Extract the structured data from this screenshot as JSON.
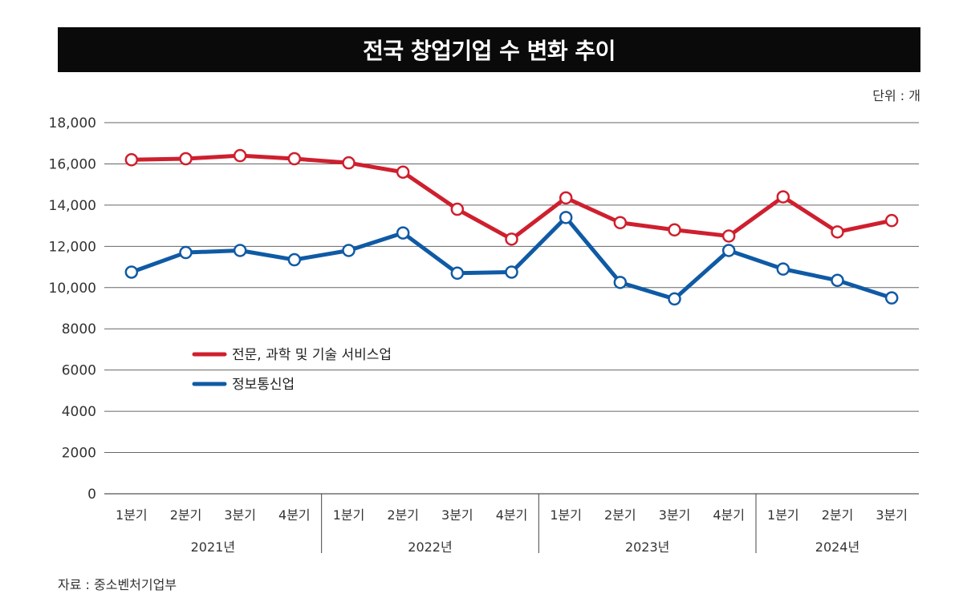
{
  "title": "전국 창업기업 수 변화 추이",
  "unit": "단위 : 개",
  "source": "자료 : 중소벤처기업부",
  "colors": {
    "red": "#cf1f2e",
    "blue": "#0f5aa5"
  },
  "chart_data": {
    "type": "line",
    "title": "전국 창업기업 수 변화 추이",
    "xlabel": "",
    "ylabel": "",
    "ylim": [
      0,
      18000
    ],
    "yticks": [
      0,
      2000,
      4000,
      6000,
      8000,
      10000,
      12000,
      14000,
      16000,
      18000
    ],
    "ytick_labels": [
      "0",
      "2000",
      "4000",
      "6000",
      "8000",
      "10,000",
      "12,000",
      "14,000",
      "16,000",
      "18,000"
    ],
    "grid": true,
    "legend_position": "center-left",
    "categories": [
      "1분기",
      "2분기",
      "3분기",
      "4분기",
      "1분기",
      "2분기",
      "3분기",
      "4분기",
      "1분기",
      "2분기",
      "3분기",
      "4분기",
      "1분기",
      "2분기",
      "3분기"
    ],
    "years": [
      {
        "label": "2021년",
        "span": 4
      },
      {
        "label": "2022년",
        "span": 4
      },
      {
        "label": "2023년",
        "span": 4
      },
      {
        "label": "2024년",
        "span": 3
      }
    ],
    "series": [
      {
        "name": "전문, 과학 및 기술 서비스업",
        "color": "#cf1f2e",
        "values": [
          16200,
          16250,
          16400,
          16250,
          16050,
          15600,
          13800,
          12350,
          14350,
          13150,
          12800,
          12500,
          14400,
          12700,
          13250
        ]
      },
      {
        "name": "정보통신업",
        "color": "#0f5aa5",
        "values": [
          10750,
          11700,
          11800,
          11350,
          11800,
          12650,
          10700,
          10750,
          13400,
          10250,
          9450,
          11800,
          10900,
          10350,
          9500
        ]
      }
    ]
  }
}
